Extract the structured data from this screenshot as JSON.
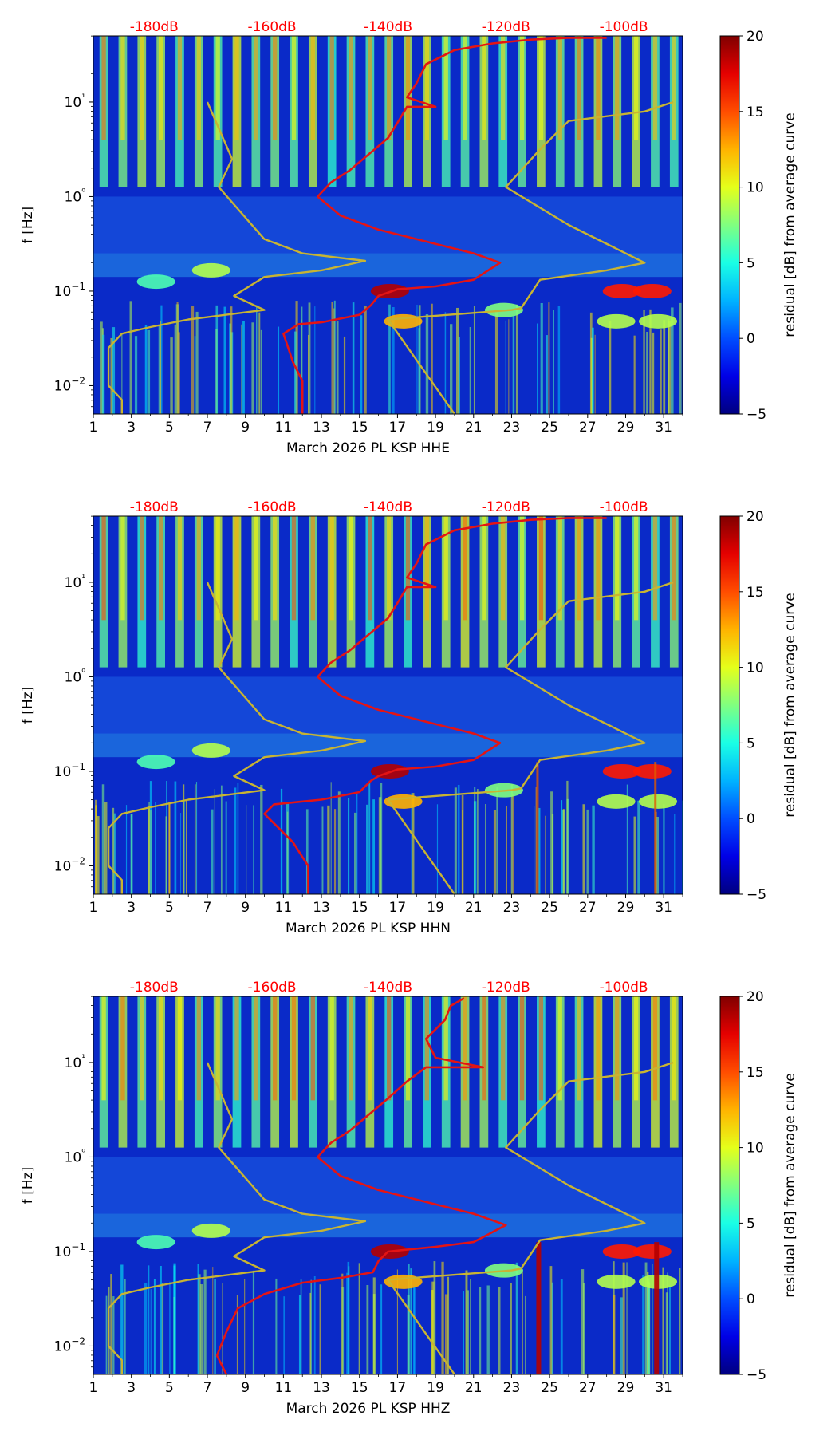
{
  "chart_data": [
    {
      "type": "heatmap",
      "title": "",
      "xlabel": "March 2026 PL KSP  HHE",
      "ylabel": "f [Hz]",
      "x_ticks": [
        "1",
        "3",
        "5",
        "7",
        "9",
        "11",
        "13",
        "15",
        "17",
        "19",
        "21",
        "23",
        "25",
        "27",
        "29",
        "31"
      ],
      "y_ticks": [
        "10−2",
        "10−1",
        "10⁰",
        "10¹"
      ],
      "xlim": [
        1,
        32
      ],
      "ylim_log10": [
        -2.3,
        1.7
      ],
      "top_db_ticks": [
        "-180dB",
        "-160dB",
        "-140dB",
        "-120dB",
        "-100dB"
      ],
      "top_db_colour": "#ff0000",
      "colorbar": {
        "label": "residual [dB] from average curve",
        "min": -5,
        "max": 20,
        "ticks": [
          "20",
          "15",
          "10",
          "5",
          "0",
          "−5"
        ]
      },
      "series": [
        {
          "name": "noise-model-low",
          "colour": "#c8b432",
          "points_day_log10f": [
            [
              2.5,
              -2.3
            ],
            [
              2.5,
              -2.15
            ],
            [
              1.8,
              -2.0
            ],
            [
              1.8,
              -1.6
            ],
            [
              2.5,
              -1.45
            ],
            [
              4,
              -1.38
            ],
            [
              6,
              -1.3
            ],
            [
              10,
              -1.2
            ],
            [
              8.4,
              -1.05
            ],
            [
              10,
              -0.85
            ],
            [
              13,
              -0.78
            ],
            [
              15.3,
              -0.68
            ],
            [
              12,
              -0.6
            ],
            [
              10,
              -0.45
            ],
            [
              7.6,
              0.1
            ],
            [
              8.3,
              0.4
            ],
            [
              7,
              1.0
            ]
          ]
        },
        {
          "name": "noise-model-high",
          "colour": "#c8b432",
          "points_day_log10f": [
            [
              20,
              -2.3
            ],
            [
              16.5,
              -1.3
            ],
            [
              23,
              -1.2
            ],
            [
              23.5,
              -1.18
            ],
            [
              24.5,
              -0.88
            ],
            [
              28,
              -0.78
            ],
            [
              30,
              -0.7
            ],
            [
              26,
              -0.3
            ],
            [
              22.7,
              0.1
            ],
            [
              24.5,
              0.5
            ],
            [
              26,
              0.8
            ],
            [
              30,
              0.9
            ],
            [
              31.5,
              1.0
            ]
          ]
        },
        {
          "name": "median-psd",
          "colour": "#e41414",
          "points_day_log10f": [
            [
              12,
              -2.3
            ],
            [
              12,
              -1.95
            ],
            [
              11.5,
              -1.75
            ],
            [
              11,
              -1.45
            ],
            [
              11.8,
              -1.35
            ],
            [
              13,
              -1.33
            ],
            [
              15,
              -1.25
            ],
            [
              15.6,
              -1.15
            ],
            [
              16,
              -1.05
            ],
            [
              17,
              -0.98
            ],
            [
              19,
              -0.95
            ],
            [
              21,
              -0.88
            ],
            [
              22.4,
              -0.7
            ],
            [
              21,
              -0.6
            ],
            [
              19,
              -0.5
            ],
            [
              16,
              -0.35
            ],
            [
              14,
              -0.2
            ],
            [
              12.8,
              0
            ],
            [
              13.5,
              0.15
            ],
            [
              14.5,
              0.28
            ],
            [
              15.5,
              0.45
            ],
            [
              16.5,
              0.62
            ],
            [
              17,
              0.78
            ],
            [
              17.5,
              0.95
            ],
            [
              19,
              0.95
            ],
            [
              17.5,
              1.05
            ],
            [
              18,
              1.2
            ],
            [
              18.5,
              1.4
            ],
            [
              20,
              1.55
            ],
            [
              22,
              1.62
            ],
            [
              24,
              1.66
            ],
            [
              26,
              1.68
            ],
            [
              28,
              1.68
            ]
          ]
        }
      ]
    },
    {
      "type": "heatmap",
      "title": "",
      "xlabel": "March 2026 PL KSP  HHN",
      "ylabel": "f [Hz]",
      "x_ticks": [
        "1",
        "3",
        "5",
        "7",
        "9",
        "11",
        "13",
        "15",
        "17",
        "19",
        "21",
        "23",
        "25",
        "27",
        "29",
        "31"
      ],
      "y_ticks": [
        "10−2",
        "10−1",
        "10⁰",
        "10¹"
      ],
      "xlim": [
        1,
        32
      ],
      "ylim_log10": [
        -2.3,
        1.7
      ],
      "top_db_ticks": [
        "-180dB",
        "-160dB",
        "-140dB",
        "-120dB",
        "-100dB"
      ],
      "top_db_colour": "#ff0000",
      "colorbar": {
        "label": "residual [dB] from average curve",
        "min": -5,
        "max": 20,
        "ticks": [
          "20",
          "15",
          "10",
          "5",
          "0",
          "−5"
        ]
      },
      "series": [
        {
          "name": "noise-model-low",
          "colour": "#c8b432",
          "points_day_log10f": [
            [
              2.5,
              -2.3
            ],
            [
              2.5,
              -2.15
            ],
            [
              1.8,
              -2.0
            ],
            [
              1.8,
              -1.6
            ],
            [
              2.5,
              -1.45
            ],
            [
              4,
              -1.38
            ],
            [
              6,
              -1.3
            ],
            [
              10,
              -1.2
            ],
            [
              8.4,
              -1.05
            ],
            [
              10,
              -0.85
            ],
            [
              13,
              -0.78
            ],
            [
              15.3,
              -0.68
            ],
            [
              12,
              -0.6
            ],
            [
              10,
              -0.45
            ],
            [
              7.6,
              0.1
            ],
            [
              8.3,
              0.4
            ],
            [
              7,
              1.0
            ]
          ]
        },
        {
          "name": "noise-model-high",
          "colour": "#c8b432",
          "points_day_log10f": [
            [
              20,
              -2.3
            ],
            [
              16.5,
              -1.3
            ],
            [
              23,
              -1.2
            ],
            [
              23.5,
              -1.18
            ],
            [
              24.5,
              -0.88
            ],
            [
              28,
              -0.78
            ],
            [
              30,
              -0.7
            ],
            [
              26,
              -0.3
            ],
            [
              22.7,
              0.1
            ],
            [
              24.5,
              0.5
            ],
            [
              26,
              0.8
            ],
            [
              30,
              0.9
            ],
            [
              31.5,
              1.0
            ]
          ]
        },
        {
          "name": "median-psd",
          "colour": "#e41414",
          "points_day_log10f": [
            [
              12.3,
              -2.3
            ],
            [
              12.3,
              -2.0
            ],
            [
              11.5,
              -1.75
            ],
            [
              10,
              -1.45
            ],
            [
              10.5,
              -1.35
            ],
            [
              13,
              -1.3
            ],
            [
              15,
              -1.22
            ],
            [
              15.6,
              -1.1
            ],
            [
              16,
              -1.05
            ],
            [
              17,
              -0.98
            ],
            [
              19,
              -0.95
            ],
            [
              21,
              -0.88
            ],
            [
              22.4,
              -0.7
            ],
            [
              21,
              -0.6
            ],
            [
              19,
              -0.5
            ],
            [
              16,
              -0.35
            ],
            [
              14,
              -0.2
            ],
            [
              12.8,
              0
            ],
            [
              13.5,
              0.15
            ],
            [
              14.5,
              0.28
            ],
            [
              15.5,
              0.45
            ],
            [
              16.5,
              0.62
            ],
            [
              17,
              0.78
            ],
            [
              17.5,
              0.95
            ],
            [
              19,
              0.95
            ],
            [
              17.5,
              1.05
            ],
            [
              18,
              1.2
            ],
            [
              18.5,
              1.4
            ],
            [
              20,
              1.55
            ],
            [
              22,
              1.62
            ],
            [
              24,
              1.66
            ],
            [
              26,
              1.68
            ],
            [
              28,
              1.68
            ]
          ]
        }
      ]
    },
    {
      "type": "heatmap",
      "title": "",
      "xlabel": "March 2026 PL KSP  HHZ",
      "ylabel": "f [Hz]",
      "x_ticks": [
        "1",
        "3",
        "5",
        "7",
        "9",
        "11",
        "13",
        "15",
        "17",
        "19",
        "21",
        "23",
        "25",
        "27",
        "29",
        "31"
      ],
      "y_ticks": [
        "10−2",
        "10−1",
        "10⁰",
        "10¹"
      ],
      "xlim": [
        1,
        32
      ],
      "ylim_log10": [
        -2.3,
        1.7
      ],
      "top_db_ticks": [
        "-180dB",
        "-160dB",
        "-140dB",
        "-120dB",
        "-100dB"
      ],
      "top_db_colour": "#ff0000",
      "colorbar": {
        "label": "residual [dB] from average curve",
        "min": -5,
        "max": 20,
        "ticks": [
          "20",
          "15",
          "10",
          "5",
          "0",
          "−5"
        ]
      },
      "series": [
        {
          "name": "noise-model-low",
          "colour": "#c8b432",
          "points_day_log10f": [
            [
              2.5,
              -2.3
            ],
            [
              2.5,
              -2.15
            ],
            [
              1.8,
              -2.0
            ],
            [
              1.8,
              -1.6
            ],
            [
              2.5,
              -1.45
            ],
            [
              4,
              -1.38
            ],
            [
              6,
              -1.3
            ],
            [
              10,
              -1.2
            ],
            [
              8.4,
              -1.05
            ],
            [
              10,
              -0.85
            ],
            [
              13,
              -0.78
            ],
            [
              15.3,
              -0.68
            ],
            [
              12,
              -0.6
            ],
            [
              10,
              -0.45
            ],
            [
              7.6,
              0.1
            ],
            [
              8.3,
              0.4
            ],
            [
              7,
              1.0
            ]
          ]
        },
        {
          "name": "noise-model-high",
          "colour": "#c8b432",
          "points_day_log10f": [
            [
              20,
              -2.3
            ],
            [
              16.5,
              -1.3
            ],
            [
              23,
              -1.2
            ],
            [
              23.5,
              -1.18
            ],
            [
              24.5,
              -0.88
            ],
            [
              28,
              -0.78
            ],
            [
              30,
              -0.7
            ],
            [
              26,
              -0.3
            ],
            [
              22.7,
              0.1
            ],
            [
              24.5,
              0.5
            ],
            [
              26,
              0.8
            ],
            [
              30,
              0.9
            ],
            [
              31.5,
              1.0
            ]
          ]
        },
        {
          "name": "median-psd",
          "colour": "#e41414",
          "points_day_log10f": [
            [
              8,
              -2.3
            ],
            [
              7.5,
              -2.1
            ],
            [
              8,
              -1.85
            ],
            [
              8.6,
              -1.6
            ],
            [
              10,
              -1.45
            ],
            [
              12,
              -1.33
            ],
            [
              14,
              -1.28
            ],
            [
              15.7,
              -1.22
            ],
            [
              16,
              -1.1
            ],
            [
              16.5,
              -1.0
            ],
            [
              19,
              -0.95
            ],
            [
              21,
              -0.9
            ],
            [
              22.7,
              -0.72
            ],
            [
              21,
              -0.6
            ],
            [
              19,
              -0.5
            ],
            [
              16,
              -0.35
            ],
            [
              14,
              -0.2
            ],
            [
              12.8,
              0
            ],
            [
              13.5,
              0.15
            ],
            [
              14.5,
              0.28
            ],
            [
              15.5,
              0.45
            ],
            [
              16.5,
              0.62
            ],
            [
              17.5,
              0.8
            ],
            [
              18.5,
              0.95
            ],
            [
              21.5,
              0.95
            ],
            [
              19,
              1.05
            ],
            [
              18.5,
              1.25
            ],
            [
              19.5,
              1.45
            ],
            [
              19.8,
              1.6
            ],
            [
              20.5,
              1.68
            ]
          ]
        }
      ]
    }
  ]
}
